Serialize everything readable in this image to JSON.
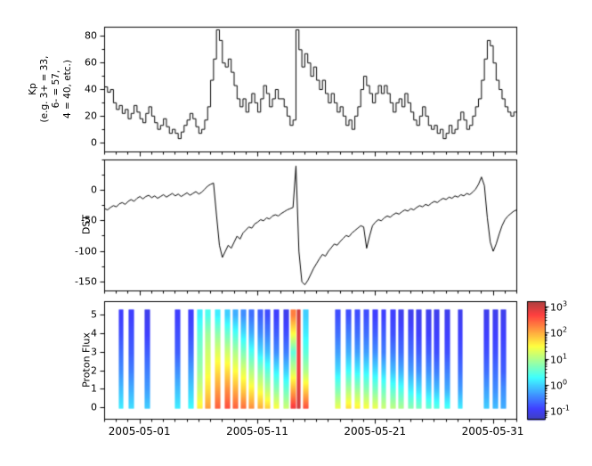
{
  "figure": {
    "background": "#ffffff"
  },
  "xaxis": {
    "tick_labels": [
      "2005-05-01",
      "2005-05-11",
      "2005-05-21",
      "2005-05-31"
    ],
    "tick_positions": [
      1,
      11,
      21,
      31
    ],
    "range": [
      -2,
      33
    ],
    "minor_tick_step": 1
  },
  "chart_data": [
    {
      "type": "line",
      "style": "step",
      "panel": "kp",
      "ylabel_lines": [
        "Kp",
        "(e.g. 3+ = 33,",
        "6- = 57,",
        "4 = 40, etc.)"
      ],
      "ylim": [
        -7,
        87
      ],
      "yticks": [
        0,
        20,
        40,
        60,
        80
      ],
      "y_minor_step": 10,
      "line_color": "#000000",
      "x_start": -2,
      "x_step": 0.25,
      "values": [
        42,
        38,
        40,
        30,
        25,
        28,
        22,
        25,
        18,
        22,
        28,
        23,
        18,
        15,
        22,
        27,
        20,
        15,
        10,
        13,
        18,
        12,
        7,
        10,
        7,
        3,
        8,
        13,
        17,
        22,
        18,
        12,
        7,
        10,
        17,
        27,
        47,
        63,
        85,
        77,
        60,
        57,
        63,
        53,
        43,
        33,
        27,
        33,
        23,
        30,
        37,
        30,
        23,
        33,
        43,
        37,
        27,
        33,
        40,
        33,
        33,
        27,
        20,
        13,
        17,
        85,
        70,
        57,
        67,
        60,
        50,
        57,
        47,
        40,
        47,
        37,
        30,
        37,
        30,
        23,
        27,
        20,
        13,
        17,
        10,
        20,
        27,
        40,
        50,
        43,
        37,
        30,
        37,
        43,
        37,
        43,
        37,
        30,
        23,
        30,
        33,
        27,
        37,
        30,
        23,
        17,
        13,
        20,
        27,
        20,
        13,
        10,
        13,
        7,
        10,
        3,
        7,
        13,
        7,
        10,
        17,
        23,
        17,
        10,
        13,
        20,
        27,
        33,
        47,
        63,
        77,
        73,
        60,
        47,
        40,
        33,
        27,
        23,
        20,
        23,
        27
      ]
    },
    {
      "type": "line",
      "style": "plain",
      "panel": "dst",
      "ylabel": "DST",
      "ylim": [
        -165,
        50
      ],
      "yticks": [
        0,
        -50,
        -100,
        -150
      ],
      "y_minor_step": 25,
      "line_color": "#000000",
      "x_start": -2,
      "x_step": 0.25,
      "values": [
        -30,
        -32,
        -28,
        -25,
        -27,
        -22,
        -20,
        -23,
        -18,
        -15,
        -18,
        -13,
        -10,
        -14,
        -10,
        -8,
        -12,
        -9,
        -13,
        -10,
        -7,
        -11,
        -8,
        -5,
        -9,
        -6,
        -10,
        -7,
        -4,
        -8,
        -5,
        -2,
        -6,
        -3,
        2,
        7,
        10,
        12,
        -40,
        -90,
        -110,
        -100,
        -90,
        -95,
        -85,
        -75,
        -80,
        -70,
        -65,
        -60,
        -62,
        -55,
        -52,
        -48,
        -50,
        -45,
        -47,
        -42,
        -40,
        -42,
        -38,
        -35,
        -32,
        -30,
        -28,
        40,
        -100,
        -150,
        -155,
        -148,
        -138,
        -128,
        -120,
        -112,
        -105,
        -108,
        -100,
        -94,
        -88,
        -90,
        -84,
        -79,
        -74,
        -76,
        -70,
        -66,
        -62,
        -58,
        -60,
        -95,
        -75,
        -58,
        -52,
        -48,
        -50,
        -45,
        -42,
        -44,
        -40,
        -37,
        -39,
        -35,
        -32,
        -34,
        -30,
        -32,
        -28,
        -25,
        -27,
        -23,
        -25,
        -21,
        -18,
        -20,
        -16,
        -13,
        -15,
        -11,
        -13,
        -9,
        -11,
        -7,
        -9,
        -5,
        -7,
        -3,
        2,
        10,
        22,
        8,
        -45,
        -85,
        -100,
        -88,
        -72,
        -58,
        -48,
        -42,
        -38,
        -34,
        -32
      ]
    },
    {
      "type": "heatmap",
      "panel": "proton_flux",
      "ylabel": "Proton Flux",
      "ylim": [
        -0.6,
        5.7
      ],
      "yticks": [
        0,
        1,
        2,
        3,
        4,
        5
      ],
      "colormap": "jet",
      "color_range_log10": [
        -1.5,
        3.3
      ],
      "bar_y_extent": [
        0,
        5.3
      ],
      "default_width": 0.45,
      "colorbar": {
        "range_log10": [
          -1.3,
          3.2
        ],
        "tick_base": "10",
        "tick_exponents": [
          3,
          2,
          1,
          0,
          -1
        ]
      },
      "columns": [
        {
          "x": -0.6,
          "p": [
            0.2,
            -0.1,
            -0.4,
            -0.6,
            -0.8,
            -0.9
          ]
        },
        {
          "x": 0.3,
          "p": [
            0.1,
            -0.2,
            -0.5,
            -0.7,
            -0.8,
            -0.9
          ]
        },
        {
          "x": 1.6,
          "p": [
            0.0,
            -0.3,
            -0.5,
            -0.7,
            -0.9,
            -1.0
          ]
        },
        {
          "x": 4.2,
          "p": [
            0.2,
            -0.1,
            -0.4,
            -0.7,
            -0.8,
            -0.9
          ]
        },
        {
          "x": 5.3,
          "p": [
            0.3,
            0.0,
            -0.3,
            -0.6,
            -0.8,
            -0.9
          ]
        },
        {
          "x": 6.1,
          "p": [
            1.6,
            1.2,
            0.9,
            0.7,
            0.5,
            0.2
          ]
        },
        {
          "x": 6.8,
          "p": [
            2.1,
            1.7,
            1.4,
            1.2,
            0.9,
            0.4
          ]
        },
        {
          "x": 7.6,
          "p": [
            2.5,
            2.1,
            1.7,
            1.3,
            0.8,
            0.2
          ]
        },
        {
          "x": 8.4,
          "p": [
            2.6,
            2.2,
            1.7,
            1.2,
            0.6,
            0.0
          ]
        },
        {
          "x": 9.1,
          "p": [
            2.5,
            2.0,
            1.5,
            1.0,
            0.4,
            -0.2
          ]
        },
        {
          "x": 9.8,
          "p": [
            2.4,
            1.8,
            1.3,
            0.7,
            0.1,
            -0.4
          ]
        },
        {
          "x": 10.5,
          "p": [
            2.2,
            1.6,
            1.0,
            0.4,
            -0.2,
            -0.6
          ]
        },
        {
          "x": 11.2,
          "p": [
            2.0,
            1.4,
            0.8,
            0.1,
            -0.4,
            -0.7
          ]
        },
        {
          "x": 11.8,
          "p": [
            1.8,
            1.1,
            0.5,
            -0.1,
            -0.5,
            -0.8
          ]
        },
        {
          "x": 12.6,
          "p": [
            1.5,
            0.8,
            0.2,
            -0.4,
            -0.7,
            -0.9
          ]
        },
        {
          "x": 13.4,
          "p": [
            1.2,
            0.6,
            0.0,
            -0.5,
            -0.8,
            -1.0
          ]
        },
        {
          "x": 14.0,
          "p": [
            2.8,
            2.0,
            1.2,
            0.5,
            1.5,
            2.3
          ]
        },
        {
          "x": 14.5,
          "w": 0.3,
          "p": [
            3.0,
            2.9,
            2.8,
            2.8,
            2.9,
            3.0
          ]
        },
        {
          "x": 15.1,
          "p": [
            2.6,
            1.8,
            1.0,
            0.5,
            0.2,
            0.0
          ]
        },
        {
          "x": 17.8,
          "p": [
            1.4,
            0.7,
            0.1,
            -0.3,
            -0.6,
            -0.8
          ]
        },
        {
          "x": 18.7,
          "p": [
            1.7,
            1.0,
            0.3,
            -0.2,
            -0.5,
            -0.8
          ]
        },
        {
          "x": 19.5,
          "p": [
            1.6,
            0.9,
            0.2,
            -0.3,
            -0.6,
            -0.8
          ]
        },
        {
          "x": 20.2,
          "p": [
            1.5,
            0.8,
            0.2,
            -0.3,
            -0.6,
            -0.8
          ]
        },
        {
          "x": 21.0,
          "p": [
            1.4,
            0.7,
            0.1,
            -0.4,
            -0.7,
            -0.9
          ]
        },
        {
          "x": 21.7,
          "p": [
            1.2,
            0.6,
            0.0,
            -0.5,
            -0.7,
            -0.9
          ]
        },
        {
          "x": 22.5,
          "p": [
            1.1,
            0.5,
            -0.1,
            -0.5,
            -0.8,
            -0.9
          ]
        },
        {
          "x": 23.2,
          "p": [
            1.0,
            0.4,
            -0.2,
            -0.6,
            -0.8,
            -1.0
          ]
        },
        {
          "x": 24.0,
          "p": [
            0.8,
            0.2,
            -0.3,
            -0.6,
            -0.8,
            -1.0
          ]
        },
        {
          "x": 24.7,
          "p": [
            0.7,
            0.1,
            -0.4,
            -0.7,
            -0.9,
            -1.0
          ]
        },
        {
          "x": 25.5,
          "p": [
            0.6,
            0.0,
            -0.4,
            -0.7,
            -0.9,
            -1.0
          ]
        },
        {
          "x": 26.2,
          "p": [
            0.5,
            -0.1,
            -0.5,
            -0.8,
            -0.9,
            -1.0
          ]
        },
        {
          "x": 27.1,
          "p": [
            0.4,
            -0.2,
            -0.5,
            -0.8,
            -0.9,
            -1.0
          ]
        },
        {
          "x": 28.2,
          "p": [
            0.2,
            -0.3,
            -0.6,
            -0.8,
            -0.9,
            -1.0
          ]
        },
        {
          "x": 30.4,
          "p": [
            0.0,
            -0.3,
            -0.6,
            -0.8,
            -0.9,
            -1.0
          ]
        },
        {
          "x": 31.2,
          "p": [
            -0.1,
            -0.4,
            -0.6,
            -0.8,
            -0.9,
            -1.0
          ]
        },
        {
          "x": 31.9,
          "p": [
            -0.2,
            -0.4,
            -0.7,
            -0.8,
            -0.9,
            -1.0
          ]
        }
      ]
    }
  ]
}
